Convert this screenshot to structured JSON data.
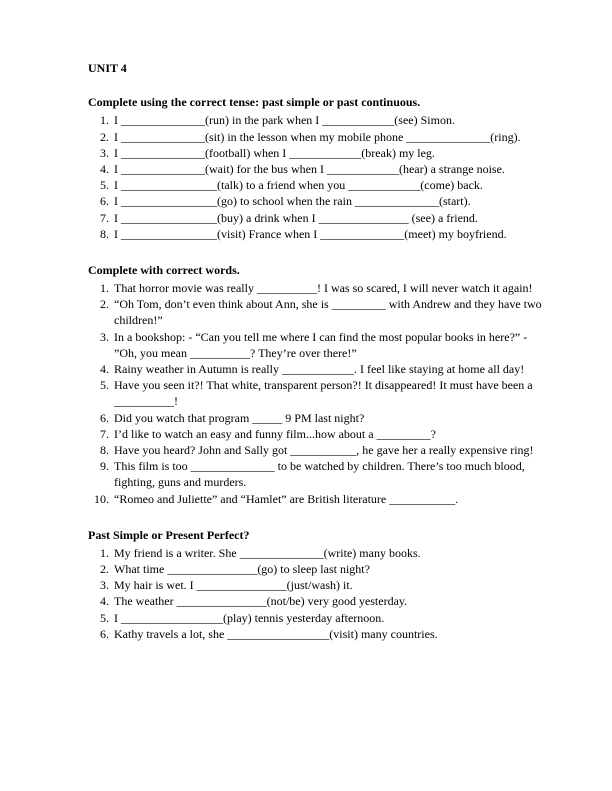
{
  "unit_title": "UNIT 4",
  "sections": [
    {
      "title": "Complete using the correct tense: past simple or past continuous.",
      "items": [
        "I ______________(run) in the park when I ____________(see) Simon.",
        "I ______________(sit) in the lesson when my mobile phone ______________(ring).",
        "I ______________(football) when I ____________(break) my leg.",
        "I ______________(wait) for the bus when I ____________(hear) a strange noise.",
        "I ________________(talk) to a friend when you ____________(come) back.",
        "I ________________(go) to school when the rain ______________(start).",
        "I ________________(buy) a drink when I _______________ (see) a friend.",
        "I ________________(visit) France when I ______________(meet) my boyfriend."
      ]
    },
    {
      "title": "Complete with correct words.",
      "items": [
        "That horror movie was really __________! I was so scared, I will never watch it again!",
        "“Oh Tom, don’t even think about Ann, she is _________ with Andrew and they have two children!”",
        "In a bookshop: - “Can you tell me where I can find the most popular books in here?” - ”Oh, you mean __________? They’re over there!”",
        "Rainy weather in Autumn is really ____________. I feel like staying at home all day!",
        "Have you seen it?! That white, transparent person?! It disappeared! It must have been a __________!",
        "Did you watch that program _____ 9 PM last night?",
        "I’d like to watch an easy and funny film...how about a _________?",
        "Have you heard? John and Sally got ___________, he gave her a really expensive ring!",
        "This film is too ______________ to be watched by children. There’s too much blood, fighting, guns and murders.",
        "“Romeo and Juliette” and “Hamlet” are British literature ___________."
      ]
    },
    {
      "title": "Past Simple or Present Perfect?",
      "items": [
        "My friend is a writer. She ______________(write) many books.",
        "What time _______________(go) to sleep last night?",
        "My hair is wet. I _______________(just/wash) it.",
        "The weather _______________(not/be) very good yesterday.",
        "I _________________(play) tennis yesterday afternoon.",
        "Kathy travels a lot, she _________________(visit) many countries."
      ]
    }
  ]
}
